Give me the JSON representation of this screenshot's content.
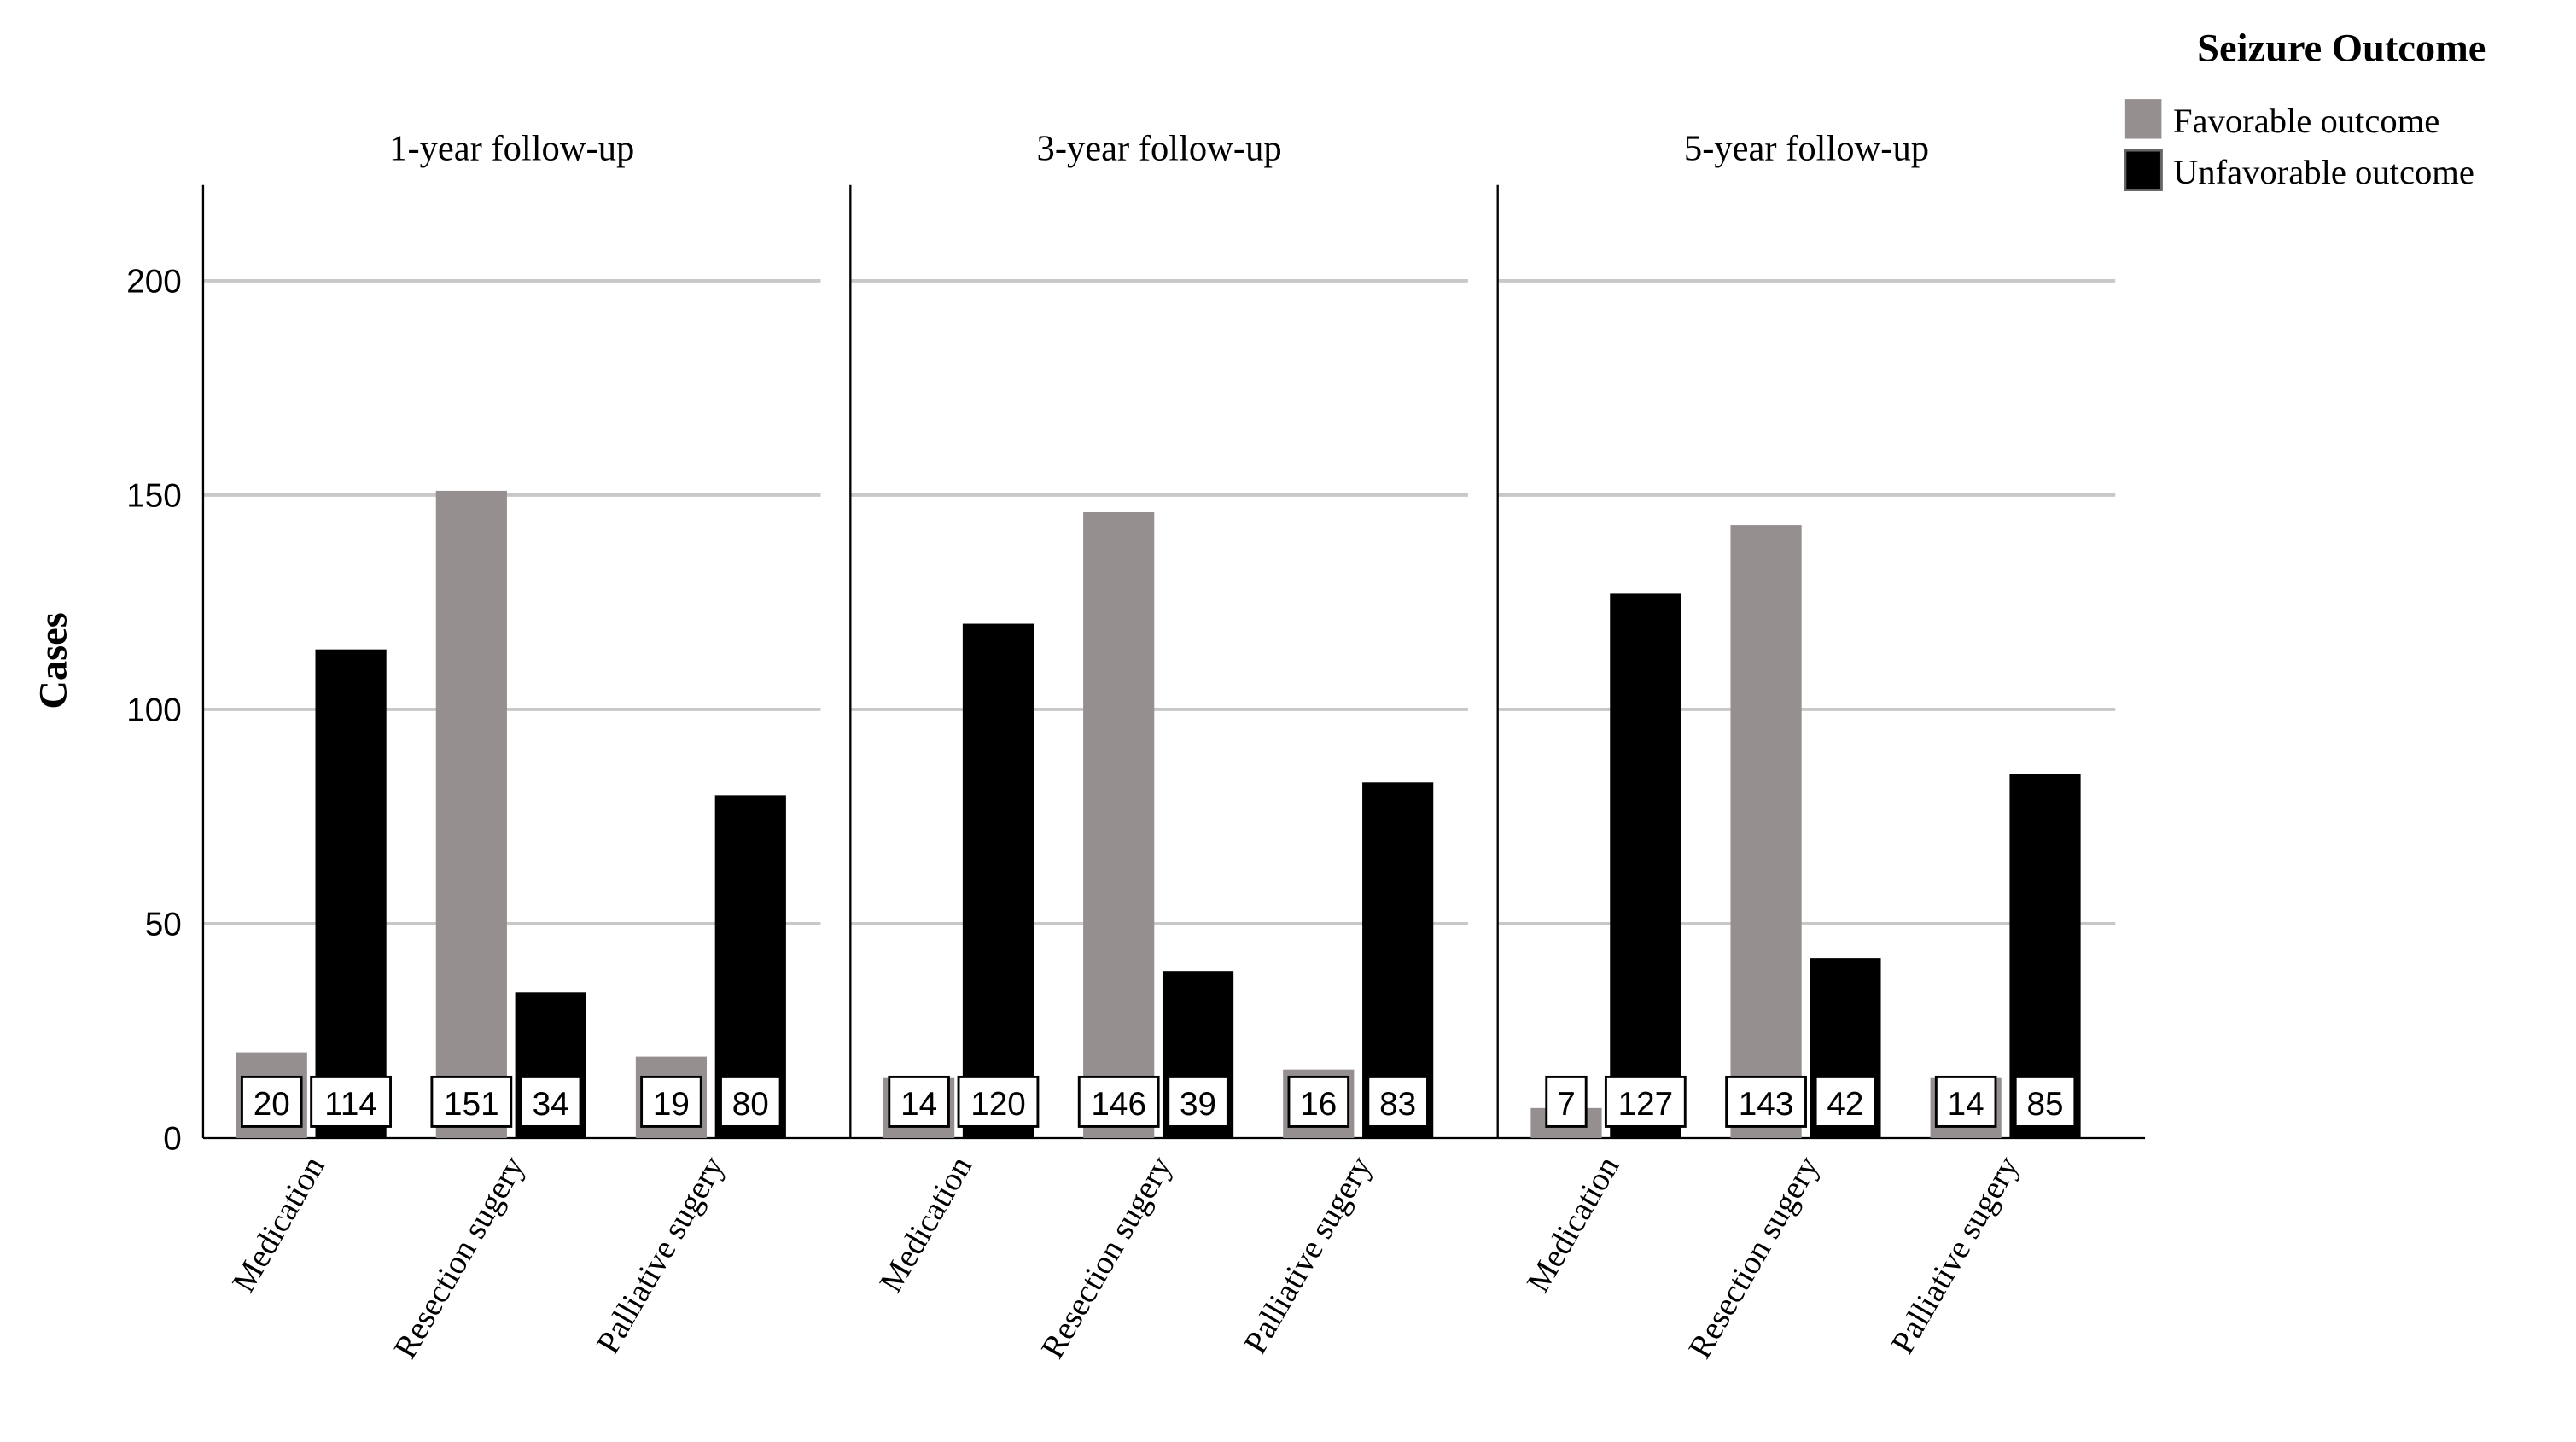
{
  "chart_data": {
    "type": "bar",
    "ylabel": "Cases",
    "ylim": [
      0,
      220
    ],
    "yticks": [
      0,
      50,
      100,
      150,
      200
    ],
    "grid": true,
    "legend": {
      "title": "Seizure Outcome",
      "placement": "top-right",
      "entries": [
        "Favorable outcome",
        "Unfavorable outcome"
      ]
    },
    "categories": [
      "Medication",
      "Resection sugery",
      "Palliative sugery"
    ],
    "colors": {
      "Favorable outcome": "#968f8f",
      "Unfavorable outcome": "#000000"
    },
    "panels": [
      {
        "title": "1-year follow-up",
        "series": [
          {
            "name": "Favorable outcome",
            "values": [
              20,
              151,
              19
            ]
          },
          {
            "name": "Unfavorable outcome",
            "values": [
              114,
              34,
              80
            ]
          }
        ]
      },
      {
        "title": "3-year follow-up",
        "series": [
          {
            "name": "Favorable outcome",
            "values": [
              14,
              146,
              16
            ]
          },
          {
            "name": "Unfavorable outcome",
            "values": [
              120,
              39,
              83
            ]
          }
        ]
      },
      {
        "title": "5-year follow-up",
        "series": [
          {
            "name": "Favorable outcome",
            "values": [
              7,
              143,
              14
            ]
          },
          {
            "name": "Unfavorable outcome",
            "values": [
              127,
              42,
              85
            ]
          }
        ]
      }
    ]
  }
}
